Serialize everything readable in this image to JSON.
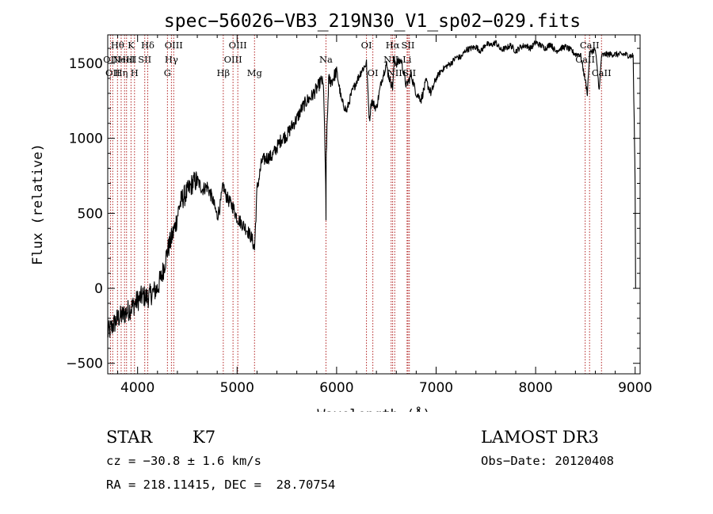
{
  "chart_data": {
    "type": "line",
    "title": "spec−56026−VB3_219N30_V1_sp02−029.fits",
    "xlabel": "Wavelength (Å)",
    "ylabel": "Flux (relative)",
    "xlim": [
      3700,
      9050
    ],
    "ylim": [
      -570,
      1690
    ],
    "xticks": [
      4000,
      5000,
      6000,
      7000,
      8000,
      9000
    ],
    "yticks": [
      -500,
      0,
      500,
      1000,
      1500
    ],
    "series": [
      {
        "name": "flux",
        "x": [
          3700,
          3750,
          3800,
          3850,
          3900,
          3950,
          4000,
          4050,
          4100,
          4150,
          4200,
          4250,
          4300,
          4340,
          4380,
          4420,
          4450,
          4500,
          4550,
          4600,
          4650,
          4700,
          4750,
          4800,
          4830,
          4861,
          4880,
          4920,
          4960,
          5000,
          5050,
          5100,
          5150,
          5175,
          5200,
          5250,
          5300,
          5350,
          5400,
          5450,
          5500,
          5550,
          5600,
          5650,
          5700,
          5750,
          5800,
          5850,
          5870,
          5890,
          5893,
          5896,
          5920,
          5950,
          6000,
          6050,
          6100,
          6150,
          6200,
          6250,
          6300,
          6330,
          6350,
          6400,
          6450,
          6500,
          6520,
          6563,
          6580,
          6600,
          6650,
          6700,
          6750,
          6800,
          6850,
          6900,
          6950,
          7000,
          7050,
          7100,
          7150,
          7200,
          7250,
          7300,
          7350,
          7400,
          7450,
          7500,
          7550,
          7600,
          7650,
          7700,
          7750,
          7800,
          7850,
          7900,
          7950,
          8000,
          8050,
          8100,
          8150,
          8200,
          8250,
          8300,
          8350,
          8400,
          8450,
          8498,
          8520,
          8542,
          8560,
          8600,
          8640,
          8662,
          8700,
          8750,
          8800,
          8850,
          8900,
          8950,
          8980,
          9000,
          9005
        ],
        "y": [
          -300,
          -250,
          -200,
          -180,
          -150,
          -120,
          -80,
          -50,
          -60,
          -30,
          0,
          100,
          250,
          330,
          420,
          550,
          600,
          640,
          700,
          720,
          660,
          680,
          600,
          480,
          550,
          690,
          630,
          580,
          540,
          470,
          430,
          390,
          330,
          260,
          660,
          850,
          870,
          880,
          940,
          1000,
          1020,
          1080,
          1130,
          1200,
          1250,
          1280,
          1330,
          1390,
          1330,
          700,
          420,
          900,
          1390,
          1380,
          1450,
          1250,
          1180,
          1300,
          1380,
          1450,
          1500,
          1120,
          1250,
          1200,
          1380,
          1500,
          1420,
          1340,
          1520,
          1500,
          1520,
          1350,
          1420,
          1300,
          1260,
          1380,
          1300,
          1400,
          1450,
          1480,
          1500,
          1540,
          1540,
          1590,
          1600,
          1610,
          1580,
          1630,
          1620,
          1640,
          1590,
          1600,
          1620,
          1580,
          1610,
          1620,
          1600,
          1640,
          1620,
          1600,
          1630,
          1580,
          1600,
          1610,
          1590,
          1560,
          1560,
          1390,
          1300,
          1560,
          1580,
          1590,
          1320,
          1550,
          1560,
          1560,
          1560,
          1560,
          1560,
          1550,
          1550,
          700,
          0
        ]
      }
    ],
    "lines": [
      {
        "wavelength": 3727,
        "label": "OII",
        "row": 1
      },
      {
        "wavelength": 3750,
        "label": "OII",
        "row": 2
      },
      {
        "wavelength": 3798,
        "label": "Hθ",
        "row": 0
      },
      {
        "wavelength": 3835,
        "label": "Hη",
        "row": 2
      },
      {
        "wavelength": 3869,
        "label": "NeIII",
        "row": 1
      },
      {
        "wavelength": 3889,
        "label": "HeI",
        "row": 1
      },
      {
        "wavelength": 3934,
        "label": "K",
        "row": 0
      },
      {
        "wavelength": 3969,
        "label": "H",
        "row": 2
      },
      {
        "wavelength": 4072,
        "label": "SII",
        "row": 1
      },
      {
        "wavelength": 4102,
        "label": "Hδ",
        "row": 0
      },
      {
        "wavelength": 4300,
        "label": "G",
        "row": 2
      },
      {
        "wavelength": 4340,
        "label": "Hγ",
        "row": 1
      },
      {
        "wavelength": 4363,
        "label": "OIII",
        "row": 0
      },
      {
        "wavelength": 4861,
        "label": "Hβ",
        "row": 2
      },
      {
        "wavelength": 4959,
        "label": "OIII",
        "row": 1
      },
      {
        "wavelength": 5007,
        "label": "OIII",
        "row": 0
      },
      {
        "wavelength": 5175,
        "label": "Mg",
        "row": 2
      },
      {
        "wavelength": 5893,
        "label": "Na",
        "row": 1
      },
      {
        "wavelength": 6300,
        "label": "OI",
        "row": 0
      },
      {
        "wavelength": 6364,
        "label": "OI",
        "row": 2
      },
      {
        "wavelength": 6548,
        "label": "NII",
        "row": 1
      },
      {
        "wavelength": 6563,
        "label": "Hα",
        "row": 0
      },
      {
        "wavelength": 6584,
        "label": "NII",
        "row": 2
      },
      {
        "wavelength": 6708,
        "label": "Li",
        "row": 1
      },
      {
        "wavelength": 6717,
        "label": "SII",
        "row": 0
      },
      {
        "wavelength": 6731,
        "label": "SII",
        "row": 2
      },
      {
        "wavelength": 8498,
        "label": "CaII",
        "row": 1
      },
      {
        "wavelength": 8542,
        "label": "CaII",
        "row": 0
      },
      {
        "wavelength": 8662,
        "label": "CaII",
        "row": 2
      }
    ]
  },
  "info": {
    "object_class": "STAR",
    "subclass": "K7",
    "survey": "LAMOST DR3",
    "redshift": "cz = −30.8 ± 1.6 km/s",
    "obs_date": "Obs−Date: 20120408",
    "coords": "RA = 218.11415, DEC =  28.70754"
  },
  "colors": {
    "spectrum": "#000000",
    "line_markers": "#b22222",
    "axes": "#000000"
  }
}
